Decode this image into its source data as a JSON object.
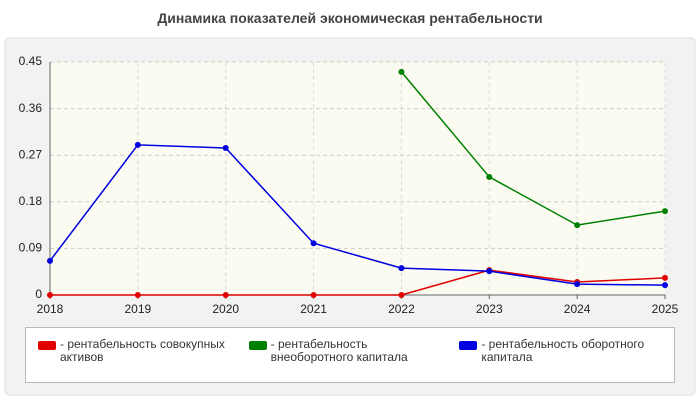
{
  "chart_data": {
    "type": "line",
    "title": "Динамика показателей экономическая рентабельности",
    "categories": [
      "2018",
      "2019",
      "2020",
      "2021",
      "2022",
      "2023",
      "2024",
      "2025"
    ],
    "series": [
      {
        "name": "- рентабельность совокупных активов",
        "color": "#e00000",
        "values": [
          0,
          0,
          0,
          0,
          0,
          0.048,
          0.025,
          0.033
        ]
      },
      {
        "name": "- рентабельность внеоборотного капитала",
        "color": "#008000",
        "values": [
          null,
          null,
          null,
          null,
          0.431,
          0.228,
          0.135,
          0.162
        ]
      },
      {
        "name": "- рентабельность оборотного капитала",
        "color": "#0000e0",
        "values": [
          0.066,
          0.29,
          0.284,
          0.1,
          0.052,
          0.046,
          0.021,
          0.019
        ]
      }
    ],
    "ylim": [
      0,
      0.45
    ],
    "yticks": [
      0,
      0.09,
      0.18,
      0.27,
      0.36,
      0.45
    ],
    "grid": true
  }
}
